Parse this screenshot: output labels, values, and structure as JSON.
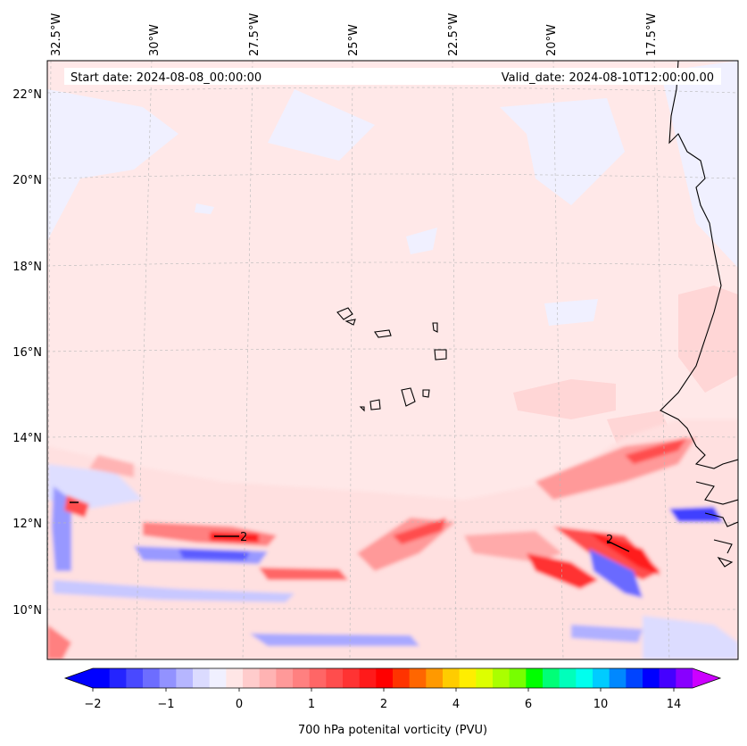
{
  "map": {
    "start_date_text": "Start date: 2024-08-08_00:00:00",
    "valid_date_text": "Valid_date: 2024-08-10T12:00:00.00",
    "longitude_labels": [
      "32.5°W",
      "30°W",
      "27.5°W",
      "25°W",
      "22.5°W",
      "20°W",
      "17.5°W"
    ],
    "latitude_labels": [
      "22°N",
      "20°N",
      "18°N",
      "16°N",
      "14°N",
      "12°N",
      "10°N"
    ],
    "contour_label": "2",
    "colors": {
      "background_field": "#ffe8e8",
      "coastline": "#000000",
      "gridline": "#b0b0b0"
    }
  },
  "colorbar": {
    "title": "700 hPa potenital vorticity (PVU)",
    "tick_labels": [
      "−2",
      "−1",
      "0",
      "1",
      "2",
      "4",
      "6",
      "10",
      "14"
    ],
    "colors": [
      "#0000ff",
      "#2424ff",
      "#4949ff",
      "#6d6dff",
      "#9292ff",
      "#b6b6ff",
      "#dbdbff",
      "#f0f0ff",
      "#ffe6e6",
      "#ffcccc",
      "#ffb3b3",
      "#ff9999",
      "#ff8080",
      "#ff6666",
      "#ff4d4d",
      "#ff3333",
      "#ff1a1a",
      "#ff0000",
      "#ff3300",
      "#ff6600",
      "#ff9900",
      "#ffcc00",
      "#ffee00",
      "#ddff00",
      "#aaff00",
      "#77ff00",
      "#00ff00",
      "#00ff77",
      "#00ffbb",
      "#00ffee",
      "#00ccff",
      "#0088ff",
      "#0044ff",
      "#0000ff",
      "#4400ff",
      "#8800ff"
    ],
    "under_color": "#0000ff",
    "over_color": "#cc00ff"
  }
}
